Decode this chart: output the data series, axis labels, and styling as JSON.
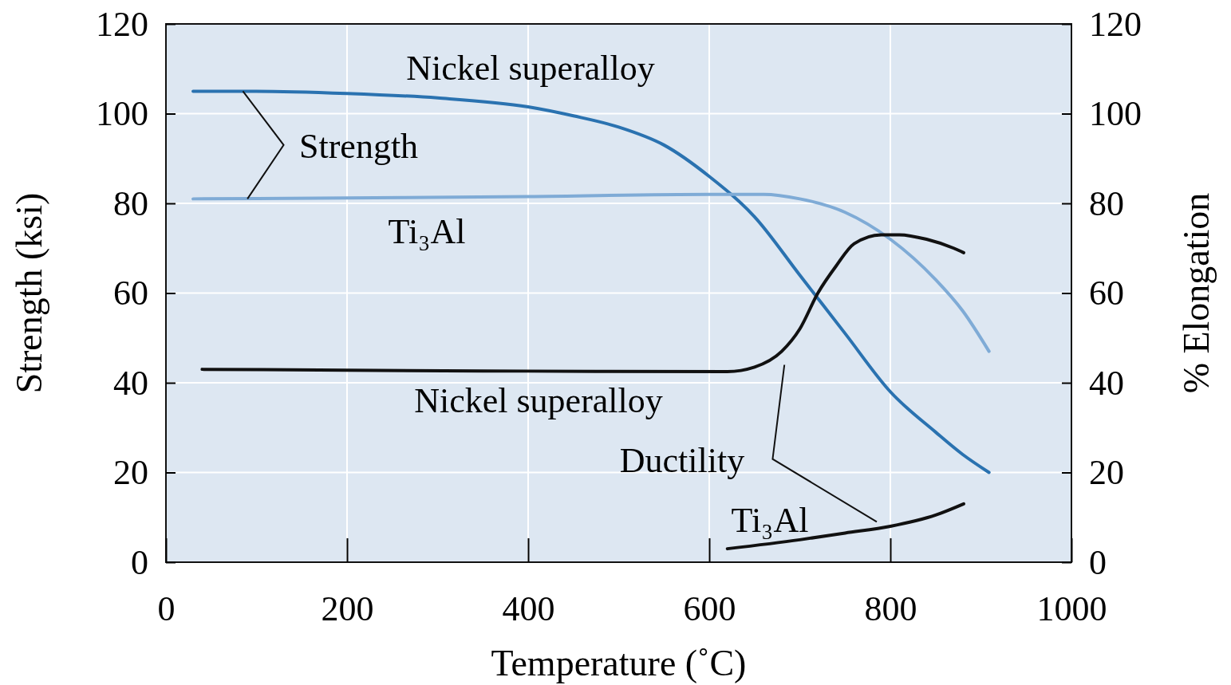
{
  "chart_data": {
    "type": "line",
    "xlabel": "Temperature (˚C)",
    "ylabel": "Strength (ksi)",
    "y2label": "% Elongation",
    "xlim": [
      0,
      1000
    ],
    "xticks": [
      0,
      200,
      400,
      600,
      800,
      1000
    ],
    "ylim": [
      0,
      120
    ],
    "yticks": [
      0,
      20,
      40,
      60,
      80,
      100,
      120
    ],
    "y2lim": [
      0,
      120
    ],
    "y2ticks": [
      0,
      20,
      40,
      60,
      80,
      100,
      120
    ],
    "grid": true,
    "legend": false,
    "annotations": [
      "Strength",
      "Ductility"
    ],
    "series": [
      {
        "name": "Nickel superalloy",
        "color": "#2a72b0",
        "x": [
          30,
          100,
          200,
          300,
          400,
          450,
          500,
          550,
          600,
          650,
          700,
          750,
          800,
          850,
          880,
          909
        ],
        "values": [
          105,
          105,
          104.5,
          103.5,
          101.5,
          99.5,
          97,
          93,
          86,
          77,
          64,
          51,
          38,
          29,
          24,
          20
        ]
      },
      {
        "name": "Ti₃Al",
        "color": "#7fabd6",
        "x": [
          30,
          200,
          400,
          600,
          660,
          700,
          750,
          800,
          850,
          880,
          909
        ],
        "values": [
          81,
          81.2,
          81.5,
          82,
          82,
          81,
          78,
          72,
          63,
          56,
          47
        ]
      },
      {
        "name": "Nickel superalloy",
        "color": "#111111",
        "x": [
          40,
          200,
          400,
          620,
          650,
          680,
          700,
          720,
          740,
          760,
          790,
          810,
          840,
          870,
          881
        ],
        "values": [
          43,
          42.8,
          42.6,
          42.5,
          43.5,
          47,
          52,
          60,
          66,
          71,
          73,
          73,
          72,
          70,
          69
        ]
      },
      {
        "name": "Ti₃Al",
        "color": "#111111",
        "x": [
          620,
          700,
          750,
          800,
          850,
          881
        ],
        "values": [
          3,
          5,
          6.5,
          8,
          10.5,
          13
        ]
      }
    ]
  }
}
